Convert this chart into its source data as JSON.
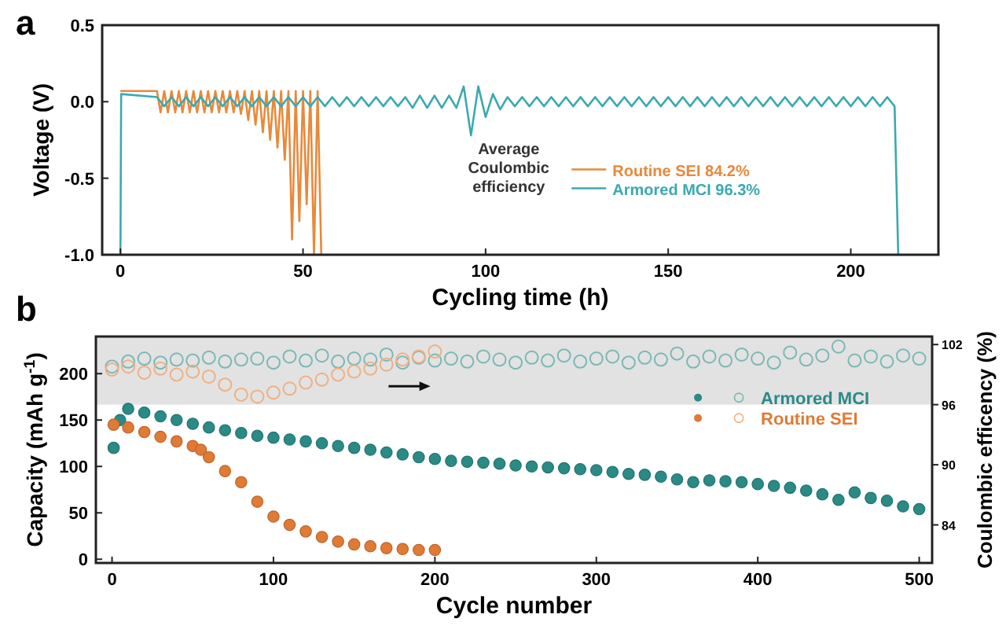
{
  "chart_data": [
    {
      "type": "line",
      "title": "a",
      "xlabel": "Cycling time (h)",
      "ylabel": "Voltage (V)",
      "legend_title": "Average Coulombic efficiency",
      "xlim": [
        -5,
        224
      ],
      "ylim": [
        -1.0,
        0.5
      ],
      "xticks": [
        0,
        50,
        100,
        150,
        200
      ],
      "yticks": [
        {
          "value": -1,
          "label": "-1.0"
        },
        -0.5,
        {
          "value": 0,
          "label": "0.0"
        },
        0.5
      ],
      "legend": "bottom right",
      "series": [
        {
          "name": "Routine SEI 84.2%",
          "color": "#e8893a",
          "x": [
            0.2,
            10,
            11,
            12,
            13,
            14,
            15,
            16,
            17,
            18,
            19,
            20,
            21,
            22,
            23,
            24,
            25,
            26,
            27,
            28,
            29,
            30,
            31,
            32,
            33,
            34,
            35,
            36,
            37,
            38,
            39,
            40,
            41,
            42,
            43,
            44,
            45,
            46,
            47,
            48,
            49,
            50,
            51,
            52,
            53,
            54,
            55
          ],
          "values": [
            0.07,
            0.07,
            -0.07,
            0.07,
            -0.07,
            0.07,
            -0.07,
            0.07,
            -0.07,
            0.07,
            -0.07,
            0.07,
            -0.07,
            0.07,
            -0.07,
            0.07,
            -0.07,
            0.07,
            -0.07,
            0.07,
            -0.07,
            0.07,
            -0.07,
            0.07,
            -0.08,
            0.07,
            -0.12,
            0.07,
            -0.15,
            0.07,
            -0.2,
            0.07,
            -0.25,
            0.07,
            -0.3,
            0.07,
            -0.38,
            0.07,
            -0.9,
            0.07,
            -0.78,
            0.07,
            -0.67,
            0.07,
            -1.0,
            0.07,
            -1.0
          ]
        },
        {
          "name": "Armored MCI 96.3%",
          "color": "#3aa9b0",
          "x": [
            0,
            0.2,
            10,
            12,
            14,
            16,
            18,
            20,
            22,
            24,
            26,
            28,
            30,
            32,
            34,
            36,
            38,
            40,
            42,
            44,
            46,
            48,
            50,
            52,
            54,
            56,
            58,
            60,
            62,
            64,
            66,
            68,
            70,
            72,
            74,
            76,
            78,
            80,
            82,
            84,
            86,
            88,
            90,
            92,
            94,
            96,
            98,
            100,
            102,
            104,
            106,
            108,
            110,
            112,
            114,
            116,
            118,
            120,
            122,
            124,
            126,
            128,
            130,
            132,
            134,
            136,
            138,
            140,
            142,
            144,
            146,
            148,
            150,
            152,
            154,
            156,
            158,
            160,
            162,
            164,
            166,
            168,
            170,
            172,
            174,
            176,
            178,
            180,
            182,
            184,
            186,
            188,
            190,
            192,
            194,
            196,
            198,
            200,
            202,
            204,
            206,
            208,
            210,
            212,
            213
          ],
          "values": [
            -1.0,
            0.05,
            0.03,
            -0.03,
            0.03,
            -0.03,
            0.03,
            -0.03,
            0.03,
            -0.03,
            0.03,
            -0.03,
            0.03,
            -0.03,
            0.03,
            -0.03,
            0.03,
            -0.03,
            0.03,
            -0.03,
            0.03,
            -0.03,
            0.03,
            -0.03,
            0.03,
            -0.03,
            0.03,
            -0.03,
            0.03,
            -0.03,
            0.03,
            -0.03,
            0.03,
            -0.03,
            0.03,
            -0.03,
            0.03,
            -0.04,
            0.04,
            -0.04,
            0.04,
            -0.04,
            0.04,
            -0.04,
            0.1,
            -0.22,
            0.1,
            -0.1,
            0.05,
            -0.05,
            0.03,
            -0.03,
            0.03,
            -0.03,
            0.03,
            -0.03,
            0.03,
            -0.03,
            0.03,
            -0.03,
            0.03,
            -0.03,
            0.03,
            -0.03,
            0.03,
            -0.03,
            0.03,
            -0.03,
            0.03,
            -0.03,
            0.03,
            -0.03,
            0.03,
            -0.03,
            0.03,
            -0.03,
            0.03,
            -0.03,
            0.03,
            -0.03,
            0.03,
            -0.03,
            0.03,
            -0.03,
            0.03,
            -0.03,
            0.03,
            -0.03,
            0.03,
            -0.03,
            0.03,
            -0.03,
            0.03,
            -0.03,
            0.03,
            -0.03,
            0.03,
            -0.03,
            0.03,
            -0.03,
            0.03,
            -0.03,
            0.03,
            -0.03,
            -1.0
          ]
        }
      ]
    },
    {
      "type": "scatter",
      "title": "b",
      "xlabel": "Cycle number",
      "ylabel": "Capacity (mAh g$^{-1}$)",
      "y2label": "Coulombic efficency (%)",
      "xlim": [
        -10,
        508
      ],
      "ylim": [
        -4,
        240
      ],
      "y2lim": [
        80.2,
        102.8
      ],
      "xticks": [
        0,
        100,
        200,
        300,
        400,
        500
      ],
      "yticks": [
        0,
        50,
        100,
        150,
        200
      ],
      "y2ticks": [
        84,
        90,
        96,
        102
      ],
      "marker": "circle",
      "legend": "right",
      "bands": [
        {
          "axis": "y2",
          "from": 96,
          "to": 102.8,
          "color": "#e2e2e2"
        }
      ],
      "series": [
        {
          "name": "Armored  MCI",
          "color": "#2a8a86",
          "x": [
            1,
            5,
            10,
            20,
            30,
            40,
            50,
            60,
            70,
            80,
            90,
            100,
            110,
            120,
            130,
            140,
            150,
            160,
            170,
            180,
            190,
            200,
            210,
            220,
            230,
            240,
            250,
            260,
            270,
            280,
            290,
            300,
            310,
            320,
            330,
            340,
            350,
            360,
            370,
            380,
            390,
            400,
            410,
            420,
            430,
            440,
            450,
            460,
            470,
            480,
            490,
            500
          ],
          "values": [
            120,
            150,
            162,
            158,
            154,
            150,
            146,
            142,
            139,
            136,
            133,
            131,
            129,
            127,
            125,
            122,
            120,
            118,
            115,
            113,
            110,
            108,
            106,
            105,
            104,
            103,
            101,
            100,
            99,
            98,
            97,
            96,
            94,
            92,
            91,
            89,
            86,
            83,
            85,
            84,
            83,
            81,
            79,
            77,
            74,
            70,
            64,
            72,
            66,
            63,
            57,
            54
          ]
        },
        {
          "name": "Routine SEI",
          "color": "#e07a35",
          "x": [
            1,
            10,
            20,
            30,
            40,
            50,
            55,
            60,
            70,
            80,
            90,
            100,
            110,
            120,
            130,
            140,
            150,
            160,
            170,
            180,
            190,
            200
          ],
          "values": [
            145,
            142,
            137,
            132,
            127,
            122,
            118,
            110,
            95,
            83,
            62,
            46,
            37,
            30,
            24,
            19,
            16,
            14,
            12,
            11,
            10,
            10
          ]
        },
        {
          "color": "#7ab8b5",
          "axis": "y2",
          "x": [
            0,
            10,
            20,
            30,
            40,
            50,
            60,
            70,
            80,
            90,
            100,
            110,
            120,
            130,
            140,
            150,
            160,
            170,
            180,
            190,
            200,
            210,
            220,
            230,
            240,
            250,
            260,
            270,
            280,
            290,
            300,
            310,
            320,
            330,
            340,
            350,
            360,
            370,
            380,
            390,
            400,
            410,
            420,
            430,
            440,
            450,
            460,
            470,
            480,
            490,
            500
          ],
          "values": [
            99.8,
            100.3,
            100.6,
            100.2,
            100.5,
            100.4,
            100.7,
            100.3,
            100.5,
            100.6,
            100.2,
            100.8,
            100.4,
            100.9,
            100.3,
            100.6,
            100.5,
            101.0,
            100.2,
            100.7,
            100.4,
            100.6,
            100.3,
            100.8,
            100.5,
            100.2,
            100.7,
            100.4,
            100.9,
            100.3,
            100.6,
            100.8,
            100.2,
            100.7,
            100.5,
            101.1,
            100.3,
            100.8,
            100.4,
            101.0,
            100.6,
            100.2,
            101.2,
            100.5,
            100.9,
            101.8,
            100.4,
            100.8,
            100.3,
            100.9,
            100.6
          ]
        },
        {
          "color": "#f0b080",
          "axis": "y2",
          "x": [
            0,
            10,
            20,
            30,
            40,
            50,
            60,
            70,
            80,
            90,
            100,
            110,
            120,
            130,
            140,
            150,
            160,
            170,
            180,
            190,
            200
          ],
          "values": [
            99.5,
            99.8,
            99.2,
            99.6,
            99.0,
            99.3,
            98.8,
            98.0,
            97.0,
            96.8,
            97.2,
            97.6,
            98.2,
            98.5,
            99.0,
            99.3,
            99.6,
            100.0,
            100.5,
            100.8,
            101.3
          ]
        }
      ]
    }
  ]
}
